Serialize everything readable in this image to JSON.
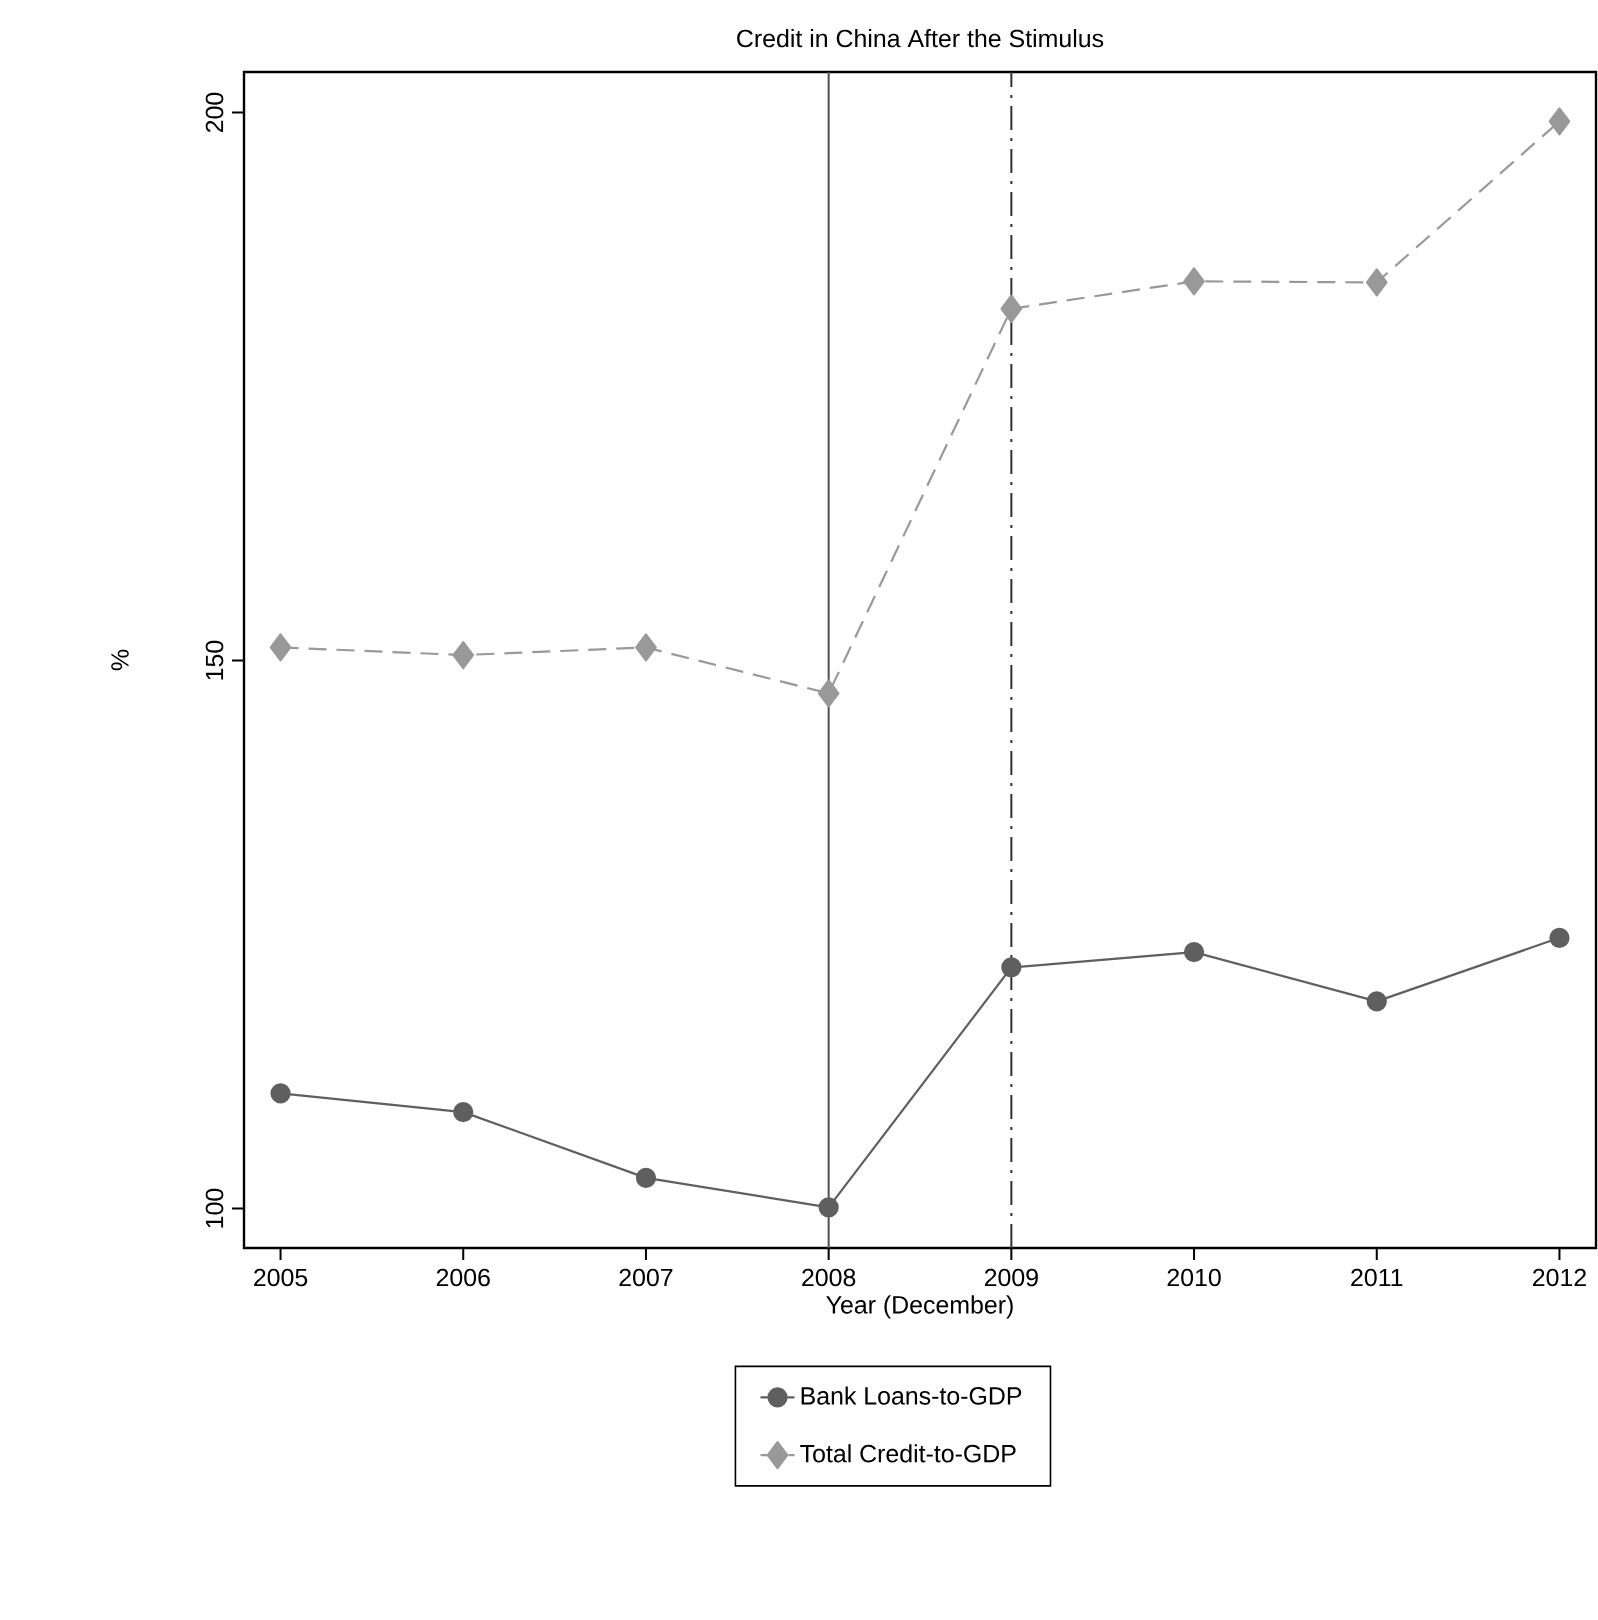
{
  "chart_data": {
    "type": "line",
    "title": "Credit in China After the Stimulus",
    "xlabel": "Year (December)",
    "ylabel": "%",
    "x": [
      2005,
      2006,
      2007,
      2008,
      2009,
      2010,
      2011,
      2012
    ],
    "xlim": [
      2004.8,
      2012.2
    ],
    "xticks": [
      2005,
      2006,
      2007,
      2008,
      2009,
      2010,
      2011,
      2012
    ],
    "ylim": [
      96.4,
      203.7
    ],
    "yticks": [
      100,
      150,
      200
    ],
    "series": [
      {
        "name": "Bank Loans-to-GDP",
        "color": "#5f5f5f",
        "marker": "circle",
        "line_style": "solid",
        "values": [
          110.5,
          108.8,
          102.8,
          100.1,
          122.0,
          123.4,
          118.9,
          124.7
        ]
      },
      {
        "name": "Total Credit-to-GDP",
        "color": "#999999",
        "marker": "diamond",
        "line_style": "dashed",
        "values": [
          151.2,
          150.5,
          151.2,
          147.0,
          182.1,
          184.6,
          184.5,
          199.2
        ]
      }
    ],
    "ref_lines": [
      {
        "axis": "x",
        "value": 2008,
        "color": "#505050",
        "line_style": "solid"
      },
      {
        "axis": "x",
        "value": 2009,
        "color": "#303030",
        "line_style": "dashdot"
      }
    ],
    "grid": false,
    "legend": "bottom"
  }
}
